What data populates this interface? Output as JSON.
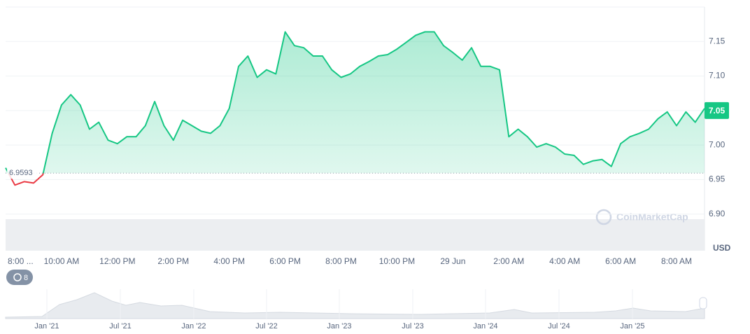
{
  "chart_data": {
    "type": "line",
    "categories": [
      "8:00 ...",
      null,
      null,
      null,
      null,
      null,
      "10:00 AM",
      null,
      null,
      null,
      null,
      null,
      "12:00 PM",
      null,
      null,
      null,
      null,
      null,
      "2:00 PM",
      null,
      null,
      null,
      null,
      null,
      "4:00 PM",
      null,
      null,
      null,
      null,
      null,
      "6:00 PM",
      null,
      null,
      null,
      null,
      null,
      "8:00 PM",
      null,
      null,
      null,
      null,
      null,
      "10:00 PM",
      null,
      null,
      null,
      null,
      null,
      "29 Jun",
      null,
      null,
      null,
      null,
      null,
      "2:00 AM",
      null,
      null,
      null,
      null,
      null,
      "4:00 AM",
      null,
      null,
      null,
      null,
      null,
      "6:00 AM",
      null,
      null,
      null,
      null,
      null,
      "8:00 AM",
      null,
      null,
      null
    ],
    "values": [
      6.967,
      6.942,
      6.947,
      6.945,
      6.957,
      7.017,
      7.058,
      7.073,
      7.058,
      7.023,
      7.033,
      7.007,
      7.002,
      7.012,
      7.012,
      7.028,
      7.063,
      7.028,
      7.007,
      7.036,
      7.028,
      7.02,
      7.017,
      7.028,
      7.053,
      7.114,
      7.129,
      7.098,
      7.109,
      7.103,
      7.164,
      7.144,
      7.141,
      7.129,
      7.129,
      7.109,
      7.098,
      7.103,
      7.114,
      7.121,
      7.129,
      7.131,
      7.139,
      7.149,
      7.159,
      7.164,
      7.164,
      7.144,
      7.134,
      7.123,
      7.141,
      7.114,
      7.114,
      7.109,
      7.012,
      7.023,
      7.012,
      6.997,
      7.002,
      6.997,
      6.987,
      6.985,
      6.972,
      6.977,
      6.979,
      6.969,
      7.002,
      7.012,
      7.017,
      7.023,
      7.038,
      7.048,
      7.028,
      7.048,
      7.033,
      7.053
    ],
    "color": "#16c784",
    "down_color": "#ea3943",
    "baseline": 6.9593,
    "current_price": 7.05,
    "current_price_label": "7.05",
    "ylim": [
      6.85,
      7.2
    ],
    "yticks": [
      {
        "value": 6.9,
        "label": "6.90"
      },
      6.95,
      {
        "value": 7.0,
        "label": "7.00"
      },
      7.05,
      {
        "value": 7.1,
        "label": "7.10"
      },
      7.15
    ],
    "grid": true,
    "currency": "USD",
    "watermark": "CoinMarketCap",
    "badge": 8,
    "navigator": {
      "labels": [
        "Jan '21",
        "Jul '21",
        "Jan '22",
        "Jul '22",
        "Jan '23",
        "Jul '23",
        "Jan '24",
        "Jul '24",
        "Jan '25"
      ]
    }
  }
}
